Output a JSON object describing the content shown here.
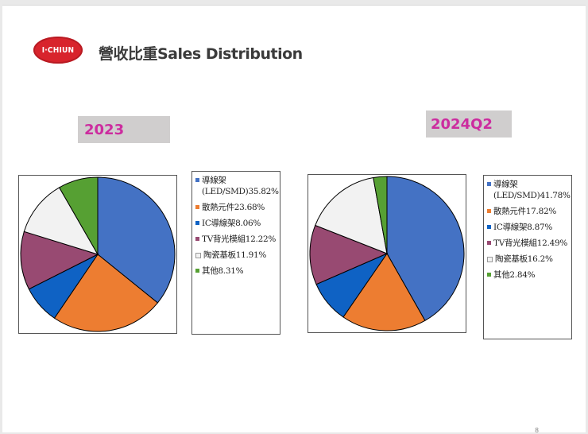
{
  "slide": {
    "logo_text": "I·CHIUN",
    "title": "營收比重Sales Distribution",
    "page_number": "8"
  },
  "chart_data": [
    {
      "type": "pie",
      "title": "2023",
      "slices": [
        {
          "label": "導線架(LED/SMD)35.82%",
          "value": 35.82,
          "color": "#4472c4"
        },
        {
          "label": "散熱元件23.68%",
          "value": 23.68,
          "color": "#ed7d31"
        },
        {
          "label": "IC導線架8.06%",
          "value": 8.06,
          "color": "#0f62c4"
        },
        {
          "label": "TV背光模組12.22%",
          "value": 12.22,
          "color": "#984a72"
        },
        {
          "label": "陶瓷基板11.91%",
          "value": 11.91,
          "color": "#f2f2f2"
        },
        {
          "label": "其他8.31%",
          "value": 8.31,
          "color": "#56a033"
        }
      ]
    },
    {
      "type": "pie",
      "title": "2024Q2",
      "slices": [
        {
          "label": "導線架(LED/SMD)41.78%",
          "value": 41.78,
          "color": "#4472c4"
        },
        {
          "label": "散熱元件17.82%",
          "value": 17.82,
          "color": "#ed7d31"
        },
        {
          "label": "IC導線架8.87%",
          "value": 8.87,
          "color": "#0f62c4"
        },
        {
          "label": "TV背光模組12.49%",
          "value": 12.49,
          "color": "#984a72"
        },
        {
          "label": "陶瓷基板16.2%",
          "value": 16.2,
          "color": "#f2f2f2"
        },
        {
          "label": "其他2.84%",
          "value": 2.84,
          "color": "#56a033"
        }
      ]
    }
  ]
}
